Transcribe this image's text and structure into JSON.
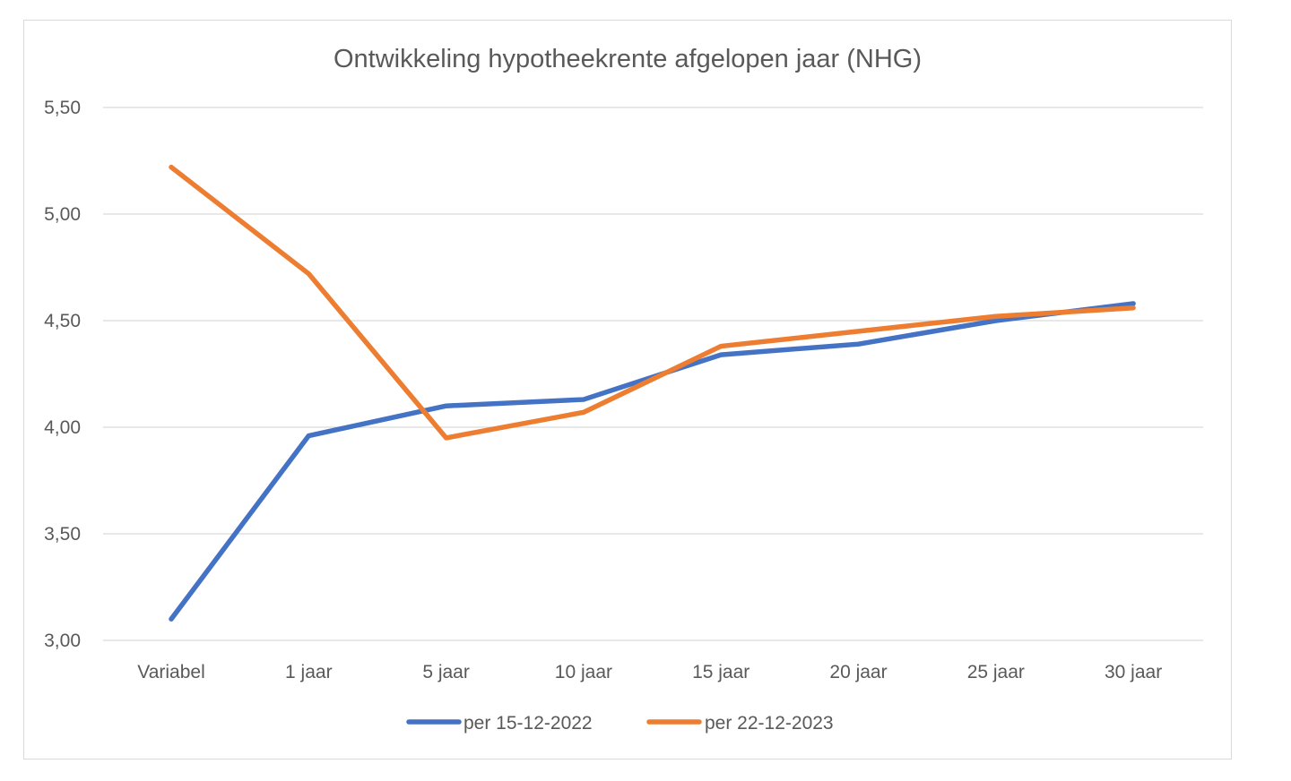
{
  "chart_data": {
    "type": "line",
    "title": "Ontwikkeling hypotheekrente afgelopen jaar (NHG)",
    "xlabel": "",
    "ylabel": "",
    "categories": [
      "Variabel",
      "1 jaar",
      "5 jaar",
      "10 jaar",
      "15 jaar",
      "20 jaar",
      "25 jaar",
      "30 jaar"
    ],
    "ylim": [
      3.0,
      5.5
    ],
    "yticks": [
      3.0,
      3.5,
      4.0,
      4.5,
      5.0,
      5.5
    ],
    "ytick_labels": [
      "3,00",
      "3,50",
      "4,00",
      "4,50",
      "5,00",
      "5,50"
    ],
    "grid": true,
    "legend_position": "bottom",
    "series": [
      {
        "name": "per 15-12-2022",
        "color": "#4472C4",
        "values": [
          3.1,
          3.96,
          4.1,
          4.13,
          4.34,
          4.39,
          4.5,
          4.58
        ]
      },
      {
        "name": "per 22-12-2023",
        "color": "#ED7D31",
        "values": [
          5.22,
          4.72,
          3.95,
          4.07,
          4.38,
          4.45,
          4.52,
          4.56
        ]
      }
    ]
  }
}
